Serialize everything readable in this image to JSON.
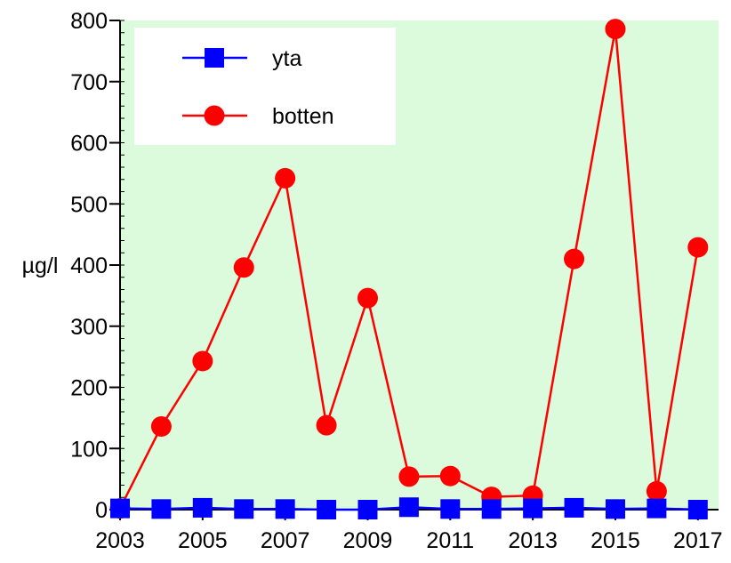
{
  "chart_data": {
    "type": "line",
    "ylabel": "µg/l",
    "xlabel": "",
    "ylim": [
      0,
      800
    ],
    "xlim": [
      2003,
      2017.5
    ],
    "y_ticks": [
      0,
      100,
      200,
      300,
      400,
      500,
      600,
      700,
      800
    ],
    "x_ticks": [
      2003,
      2005,
      2007,
      2009,
      2011,
      2013,
      2015,
      2017
    ],
    "plot_background": "#dcfadc",
    "legend_position": "top-left",
    "x": [
      2003,
      2004,
      2005,
      2006,
      2007,
      2008,
      2009,
      2010,
      2011,
      2012,
      2013,
      2014,
      2015,
      2016,
      2017
    ],
    "series": [
      {
        "name": "yta",
        "color": "#0000ff",
        "marker": "square",
        "values": [
          2,
          1,
          3,
          1,
          1,
          0,
          0,
          4,
          1,
          1,
          2,
          3,
          1,
          2,
          0
        ]
      },
      {
        "name": "botten",
        "color": "#ff0000",
        "marker": "circle",
        "values": [
          2,
          136,
          243,
          396,
          542,
          138,
          346,
          54,
          55,
          21,
          23,
          410,
          786,
          30,
          429
        ]
      }
    ]
  }
}
